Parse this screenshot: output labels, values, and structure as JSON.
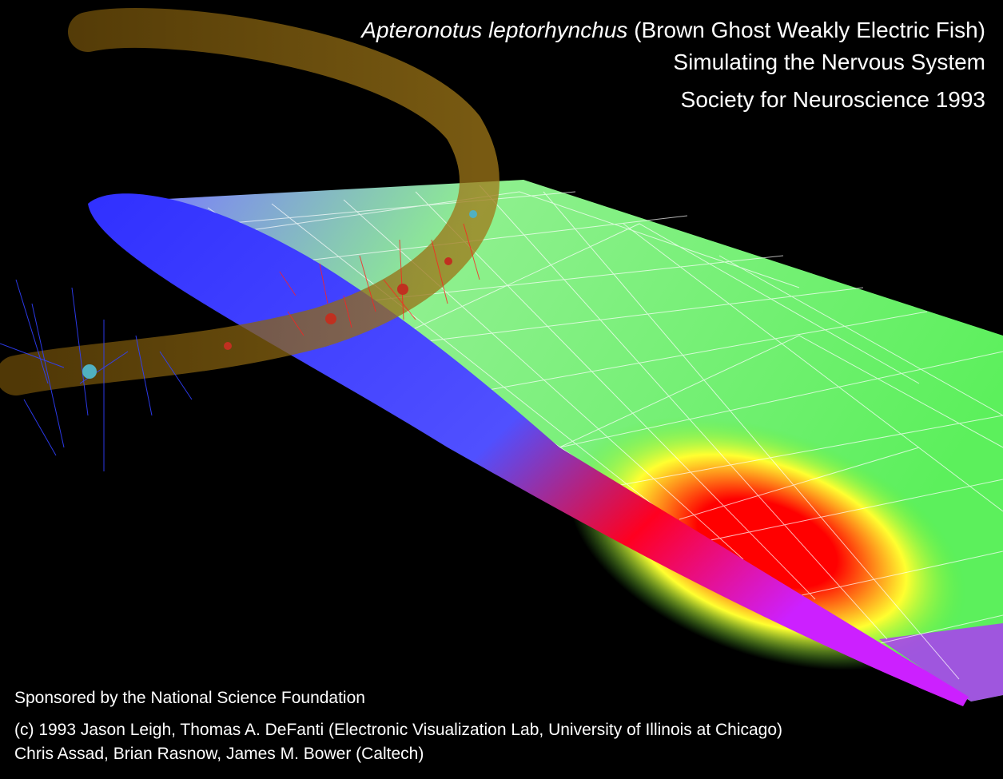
{
  "header": {
    "title_species": "Apteronotus leptorhynchus",
    "title_common": "(Brown Ghost Weakly Electric Fish)",
    "subtitle": "Simulating the Nervous System",
    "event": "Society for Neuroscience 1993"
  },
  "credits": {
    "sponsor": "Sponsored by the National Science Foundation",
    "lines": [
      "(c) 1993 Jason Leigh, Thomas A. DeFanti (Electronic Visualization Lab, University of Illinois at Chicago)",
      "Chris Assad, Brian Rasnow, James M. Bower (Caltech)"
    ]
  }
}
